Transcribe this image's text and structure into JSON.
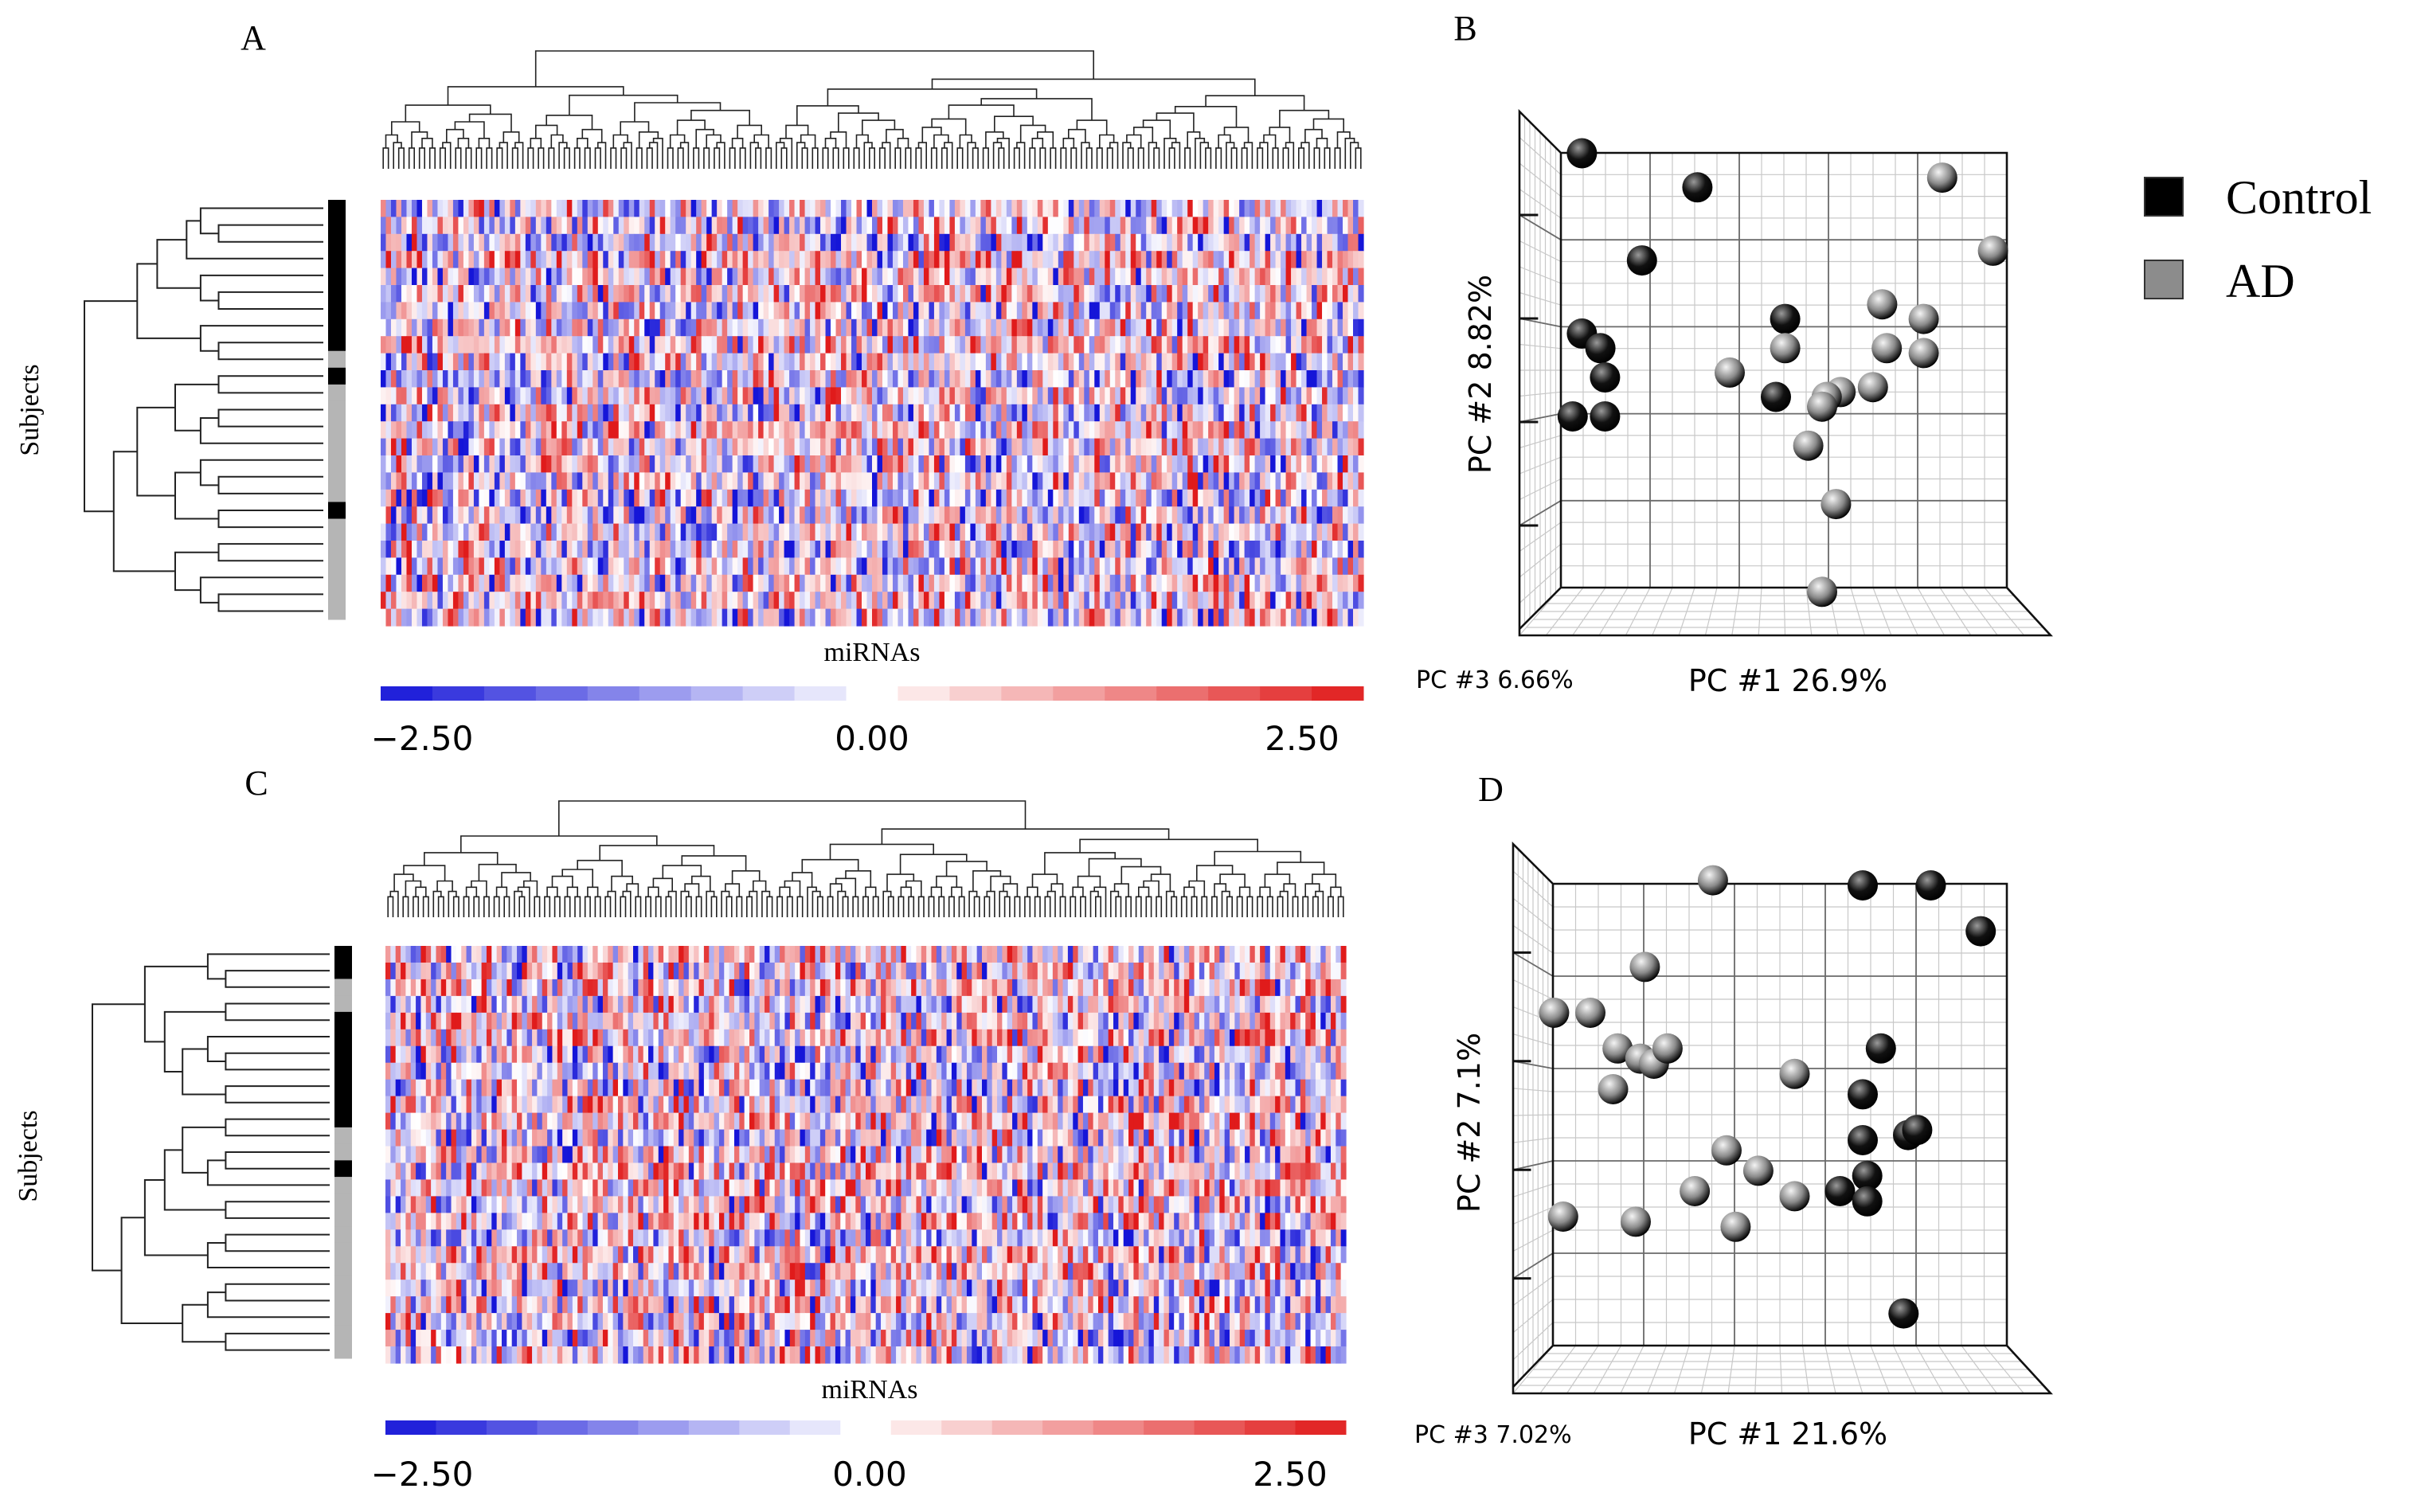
{
  "figure": {
    "legend": {
      "items": [
        {
          "label": "Control",
          "color": "#000000"
        },
        {
          "label": "AD",
          "color": "#8c8c8c"
        }
      ]
    }
  },
  "chart_data": [
    {
      "id": "A",
      "panel_label": "A",
      "type": "heatmap",
      "title": "",
      "xlabel": "miRNAs",
      "ylabel": "Subjects",
      "colorbar": {
        "min": -2.5,
        "mid": 0.0,
        "max": 2.5,
        "tick_labels": [
          "−2.50",
          "0.00",
          "2.50"
        ],
        "colors": [
          "#1515d8",
          "#ffffff",
          "#e01b1b"
        ]
      },
      "n_rows": 25,
      "n_cols": 190,
      "group_bar": [
        "Control",
        "Control",
        "Control",
        "Control",
        "Control",
        "Control",
        "Control",
        "Control",
        "Control",
        "AD",
        "Control",
        "AD",
        "AD",
        "AD",
        "AD",
        "AD",
        "AD",
        "AD",
        "Control",
        "AD",
        "AD",
        "AD",
        "AD",
        "AD",
        "AD"
      ],
      "seed": 137
    },
    {
      "id": "B",
      "panel_label": "B",
      "type": "scatter",
      "subtype": "3d-pca",
      "xlabel": "PC #1 26.9%",
      "ylabel": "PC #2 8.82%",
      "zlabel": "PC #3 6.66%",
      "series": [
        {
          "name": "Control",
          "points": [
            [
              0.08,
              0.96
            ],
            [
              0.33,
              0.89
            ],
            [
              0.21,
              0.74
            ],
            [
              0.08,
              0.59
            ],
            [
              0.12,
              0.56
            ],
            [
              0.13,
              0.5
            ],
            [
              0.06,
              0.42
            ],
            [
              0.13,
              0.42
            ],
            [
              0.52,
              0.62
            ],
            [
              0.5,
              0.46
            ]
          ]
        },
        {
          "name": "AD",
          "points": [
            [
              0.86,
              0.91
            ],
            [
              0.97,
              0.76
            ],
            [
              0.73,
              0.65
            ],
            [
              0.82,
              0.62
            ],
            [
              0.74,
              0.56
            ],
            [
              0.82,
              0.55
            ],
            [
              0.52,
              0.56
            ],
            [
              0.4,
              0.51
            ],
            [
              0.64,
              0.47
            ],
            [
              0.71,
              0.48
            ],
            [
              0.61,
              0.46
            ],
            [
              0.6,
              0.44
            ],
            [
              0.57,
              0.36
            ],
            [
              0.63,
              0.24
            ],
            [
              0.6,
              0.06
            ]
          ]
        }
      ]
    },
    {
      "id": "C",
      "panel_label": "C",
      "type": "heatmap",
      "title": "",
      "xlabel": "miRNAs",
      "ylabel": "Subjects",
      "colorbar": {
        "min": -2.5,
        "mid": 0.0,
        "max": 2.5,
        "tick_labels": [
          "−2.50",
          "0.00",
          "2.50"
        ],
        "colors": [
          "#1515d8",
          "#ffffff",
          "#e01b1b"
        ]
      },
      "n_rows": 25,
      "n_cols": 190,
      "group_bar": [
        "Control",
        "Control",
        "AD",
        "AD",
        "Control",
        "Control",
        "Control",
        "Control",
        "Control",
        "Control",
        "Control",
        "AD",
        "AD",
        "Control",
        "AD",
        "AD",
        "AD",
        "AD",
        "AD",
        "AD",
        "AD",
        "AD",
        "AD",
        "AD",
        "AD"
      ],
      "seed": 911
    },
    {
      "id": "D",
      "panel_label": "D",
      "type": "scatter",
      "subtype": "3d-pca",
      "xlabel": "PC #1 21.6%",
      "ylabel": "PC #2 7.1%",
      "zlabel": "PC #3 7.02%",
      "series": [
        {
          "name": "Control",
          "points": [
            [
              0.7,
              0.95
            ],
            [
              0.85,
              0.95
            ],
            [
              0.96,
              0.86
            ],
            [
              0.74,
              0.63
            ],
            [
              0.7,
              0.54
            ],
            [
              0.7,
              0.45
            ],
            [
              0.8,
              0.46
            ],
            [
              0.82,
              0.47
            ],
            [
              0.71,
              0.38
            ],
            [
              0.65,
              0.35
            ],
            [
              0.71,
              0.33
            ],
            [
              0.79,
              0.11
            ]
          ]
        },
        {
          "name": "AD",
          "points": [
            [
              0.37,
              0.96
            ],
            [
              0.22,
              0.79
            ],
            [
              0.02,
              0.7
            ],
            [
              0.1,
              0.7
            ],
            [
              0.16,
              0.63
            ],
            [
              0.21,
              0.61
            ],
            [
              0.24,
              0.6
            ],
            [
              0.27,
              0.63
            ],
            [
              0.15,
              0.55
            ],
            [
              0.4,
              0.43
            ],
            [
              0.47,
              0.39
            ],
            [
              0.33,
              0.35
            ],
            [
              0.55,
              0.58
            ],
            [
              0.55,
              0.34
            ],
            [
              0.42,
              0.28
            ],
            [
              0.04,
              0.3
            ],
            [
              0.2,
              0.29
            ]
          ]
        }
      ]
    }
  ]
}
